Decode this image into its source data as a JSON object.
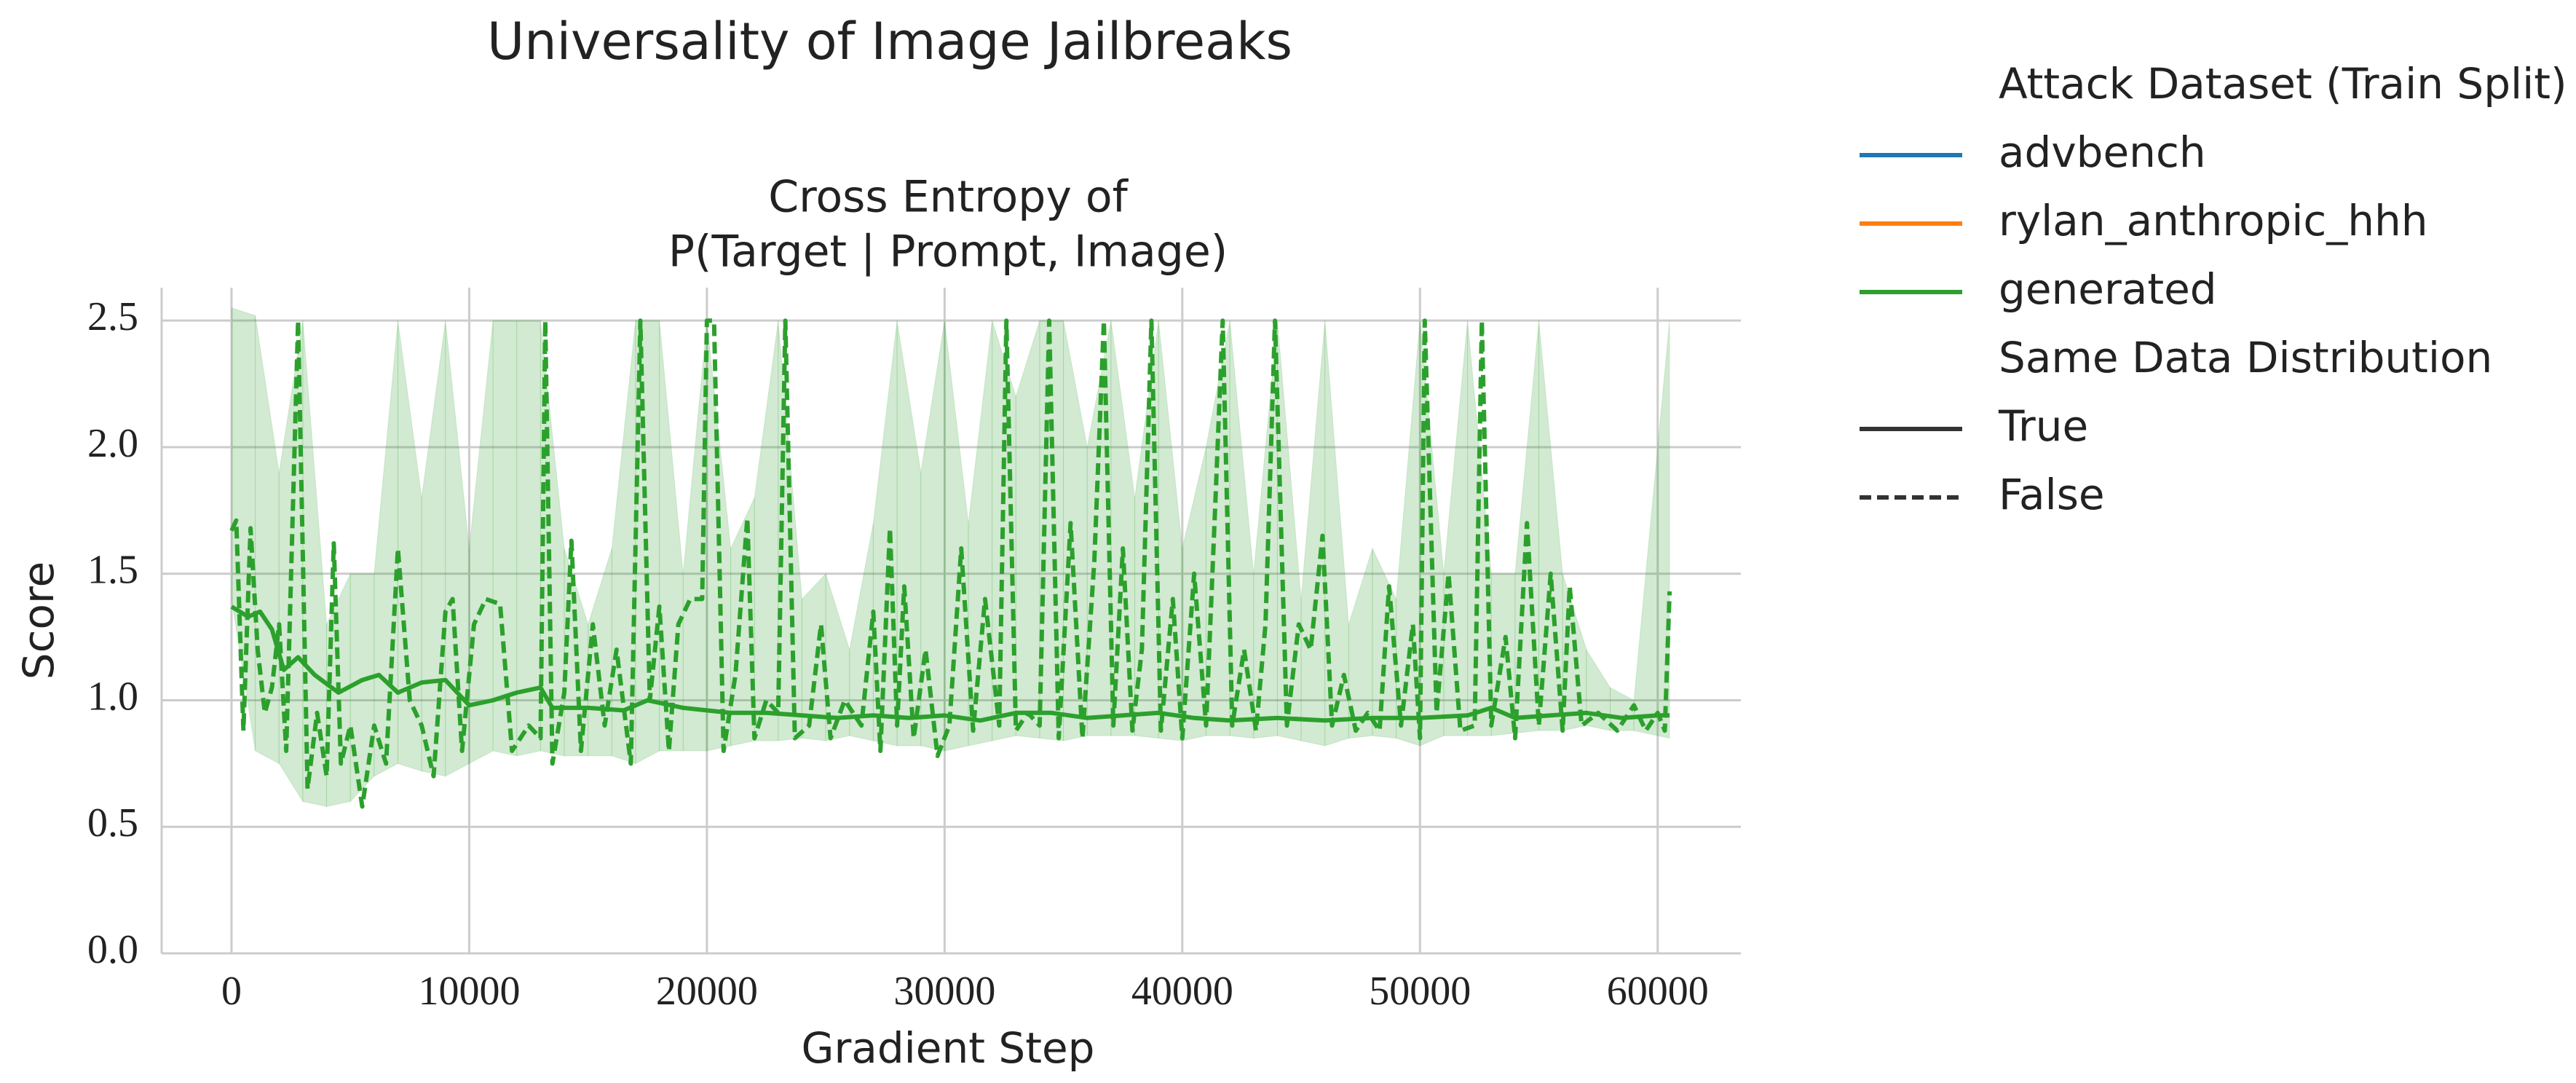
{
  "chart_data": {
    "type": "line",
    "title": "Universality of Image Jailbreaks",
    "subtitle": [
      "Cross Entropy of",
      "P(Target | Prompt, Image)"
    ],
    "x_label": "Gradient Step",
    "y_label": "Score",
    "xlim": [
      -2940,
      63500
    ],
    "ylim": [
      0,
      2.63
    ],
    "xticks": [
      0,
      10000,
      20000,
      30000,
      40000,
      50000,
      60000
    ],
    "yticks": [
      {
        "value": 0,
        "label": "0.0"
      },
      {
        "value": 0.5,
        "label": "0.5"
      },
      {
        "value": 1,
        "label": "1.0"
      },
      {
        "value": 1.5,
        "label": "1.5"
      },
      {
        "value": 2,
        "label": "2.0"
      },
      {
        "value": 2.5,
        "label": "2.5"
      }
    ],
    "grid": true,
    "legend": {
      "corner": "outside upper right",
      "title": "Attack Dataset (Train Split)",
      "entries": [
        {
          "name": "advbench",
          "color": "#1f77b4"
        },
        {
          "name": "rylan_anthropic_hhh",
          "color": "#ff7f0e"
        },
        {
          "name": "generated",
          "color": "#2ca02c"
        }
      ],
      "style_title": "Same Data Distribution",
      "style_entries": [
        {
          "name": "True",
          "linestyle": "solid"
        },
        {
          "name": "False",
          "linestyle": "dashed"
        }
      ]
    },
    "series": [
      {
        "color": "#2ca02c",
        "linestyle": "solid",
        "x": [
          0,
          700,
          1200,
          1700,
          2200,
          2800,
          3500,
          4500,
          5500,
          6200,
          7000,
          8000,
          9000,
          10000,
          11000,
          12000,
          13000,
          13500,
          15000,
          16500,
          17500,
          19000,
          20000,
          21000,
          22500,
          24000,
          25500,
          27000,
          28500,
          30000,
          31500,
          33000,
          34500,
          36000,
          37500,
          39000,
          40500,
          42000,
          44000,
          46000,
          48000,
          50000,
          52000,
          53000,
          54000,
          55500,
          57000,
          58500,
          60000,
          60500
        ],
        "values": [
          1.37,
          1.33,
          1.35,
          1.28,
          1.12,
          1.17,
          1.1,
          1.03,
          1.08,
          1.1,
          1.03,
          1.07,
          1.08,
          0.98,
          1.0,
          1.03,
          1.05,
          0.97,
          0.97,
          0.96,
          1.0,
          0.97,
          0.96,
          0.95,
          0.95,
          0.94,
          0.93,
          0.94,
          0.93,
          0.94,
          0.92,
          0.95,
          0.95,
          0.93,
          0.94,
          0.95,
          0.93,
          0.92,
          0.93,
          0.92,
          0.93,
          0.93,
          0.94,
          0.97,
          0.93,
          0.94,
          0.95,
          0.93,
          0.94,
          0.94
        ]
      },
      {
        "color": "#2ca02c",
        "linestyle": "dashed",
        "x": [
          0,
          200,
          500,
          800,
          1100,
          1400,
          1700,
          2000,
          2300,
          2800,
          3200,
          3600,
          4000,
          4300,
          4600,
          5000,
          5500,
          6000,
          6500,
          7000,
          7500,
          8000,
          8500,
          9000,
          9300,
          9700,
          10200,
          10700,
          11300,
          11800,
          12500,
          13000,
          13200,
          13500,
          14000,
          14300,
          14700,
          15200,
          15700,
          16200,
          16800,
          17200,
          17600,
          18000,
          18400,
          18800,
          19300,
          19800,
          20000,
          20300,
          20700,
          21200,
          21700,
          22000,
          22500,
          23000,
          23300,
          23700,
          24300,
          24800,
          25200,
          25800,
          26500,
          27000,
          27300,
          27700,
          28000,
          28300,
          28700,
          29200,
          29700,
          30200,
          30700,
          31200,
          31700,
          32300,
          32600,
          33000,
          33500,
          34000,
          34400,
          34800,
          35300,
          35800,
          36300,
          36700,
          37100,
          37500,
          37900,
          38300,
          38700,
          39100,
          39600,
          40000,
          40500,
          41000,
          41400,
          41700,
          42100,
          42600,
          43100,
          43500,
          43900,
          44400,
          44900,
          45400,
          45900,
          46300,
          46800,
          47300,
          47800,
          48300,
          48700,
          49200,
          49700,
          50000,
          50200,
          50700,
          51200,
          51700,
          52300,
          52600,
          53000,
          53600,
          54000,
          54500,
          55000,
          55500,
          56000,
          56300,
          56800,
          57500,
          58300,
          59000,
          59500,
          60000,
          60300,
          60500
        ],
        "values": [
          1.67,
          1.71,
          0.88,
          1.68,
          1.2,
          0.95,
          1.05,
          1.3,
          0.8,
          2.5,
          0.65,
          0.95,
          0.7,
          1.62,
          0.75,
          0.9,
          0.58,
          0.9,
          0.75,
          1.6,
          1.0,
          0.9,
          0.7,
          1.35,
          1.4,
          0.8,
          1.3,
          1.4,
          1.38,
          0.8,
          0.9,
          0.85,
          2.5,
          0.75,
          1.03,
          1.63,
          0.8,
          1.3,
          0.9,
          1.2,
          0.75,
          2.5,
          1.0,
          1.37,
          0.8,
          1.3,
          1.4,
          1.4,
          2.5,
          2.5,
          0.8,
          1.1,
          1.72,
          0.85,
          1.0,
          0.95,
          2.5,
          0.85,
          0.9,
          1.3,
          0.85,
          1.0,
          0.9,
          1.35,
          0.8,
          1.68,
          0.9,
          1.45,
          0.85,
          1.2,
          0.78,
          0.9,
          1.6,
          0.88,
          1.4,
          0.9,
          2.5,
          0.88,
          0.95,
          0.9,
          2.5,
          0.85,
          1.7,
          0.85,
          1.55,
          2.5,
          0.9,
          1.6,
          0.88,
          1.2,
          2.5,
          0.88,
          1.4,
          0.85,
          1.5,
          0.9,
          1.8,
          2.5,
          0.9,
          1.2,
          0.88,
          1.3,
          2.5,
          0.9,
          1.3,
          1.2,
          1.65,
          0.9,
          1.1,
          0.88,
          0.95,
          0.88,
          1.45,
          0.9,
          1.3,
          0.85,
          2.5,
          0.95,
          1.5,
          0.88,
          0.9,
          2.5,
          0.9,
          1.25,
          0.85,
          1.7,
          0.9,
          1.5,
          0.88,
          1.45,
          0.9,
          0.95,
          0.88,
          0.98,
          0.88,
          0.95,
          0.88,
          1.43
        ],
        "band": {
          "x": [
            0,
            1000,
            2000,
            3000,
            4000,
            5000,
            6000,
            7000,
            8000,
            9000,
            10000,
            11000,
            12000,
            13000,
            14000,
            15000,
            16000,
            17000,
            18000,
            19000,
            20000,
            21000,
            22000,
            23000,
            24000,
            25000,
            26000,
            27000,
            28000,
            29000,
            30000,
            31000,
            32000,
            33000,
            34000,
            35000,
            36000,
            37000,
            38000,
            39000,
            40000,
            41000,
            42000,
            43000,
            44000,
            45000,
            46000,
            47000,
            48000,
            49000,
            50000,
            51000,
            52000,
            53000,
            54000,
            55000,
            56000,
            57000,
            58000,
            59000,
            60500
          ],
          "lower": [
            1.4,
            0.8,
            0.75,
            0.6,
            0.58,
            0.6,
            0.7,
            0.75,
            0.72,
            0.7,
            0.75,
            0.8,
            0.78,
            0.8,
            0.78,
            0.78,
            0.78,
            0.75,
            0.8,
            0.8,
            0.8,
            0.82,
            0.84,
            0.84,
            0.85,
            0.84,
            0.86,
            0.84,
            0.82,
            0.82,
            0.8,
            0.82,
            0.84,
            0.86,
            0.85,
            0.84,
            0.86,
            0.86,
            0.86,
            0.85,
            0.84,
            0.86,
            0.86,
            0.85,
            0.86,
            0.84,
            0.82,
            0.85,
            0.86,
            0.85,
            0.82,
            0.86,
            0.86,
            0.86,
            0.87,
            0.88,
            0.88,
            0.9,
            0.88,
            0.88,
            0.85
          ],
          "upper": [
            2.55,
            2.52,
            1.9,
            2.5,
            1.3,
            1.5,
            1.5,
            2.5,
            1.8,
            2.5,
            1.6,
            2.5,
            2.5,
            2.5,
            1.6,
            1.3,
            1.6,
            2.5,
            2.5,
            1.5,
            2.5,
            1.6,
            1.8,
            2.5,
            1.4,
            1.5,
            1.2,
            1.7,
            2.5,
            1.9,
            2.5,
            1.7,
            2.5,
            2.2,
            2.5,
            2.5,
            2.0,
            2.5,
            1.8,
            2.5,
            1.6,
            2.0,
            2.5,
            1.5,
            2.5,
            1.4,
            2.5,
            1.3,
            1.6,
            1.4,
            2.5,
            1.5,
            2.5,
            1.5,
            1.5,
            2.5,
            1.5,
            1.2,
            1.05,
            1.0,
            2.5
          ]
        }
      }
    ]
  }
}
